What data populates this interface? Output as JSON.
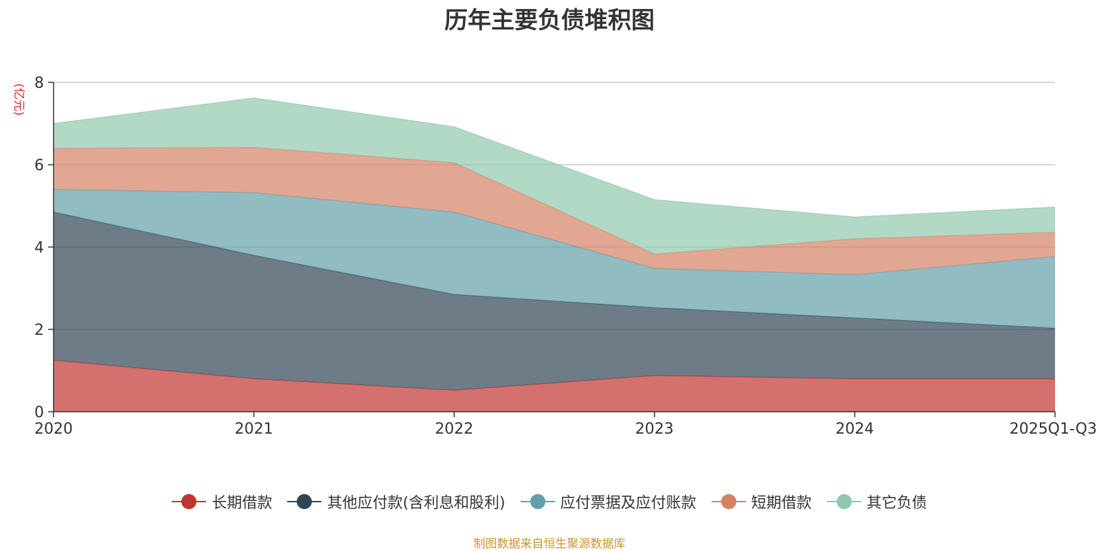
{
  "chart_data": {
    "type": "area",
    "stacked": true,
    "title": "历年主要负债堆积图",
    "unit_label": "(亿元)",
    "categories": [
      "2020",
      "2021",
      "2022",
      "2023",
      "2024",
      "2025Q1-Q3"
    ],
    "ylim": [
      0,
      8
    ],
    "yticks": [
      0,
      2,
      4,
      6,
      8
    ],
    "grid": true,
    "legend_position": "bottom",
    "series": [
      {
        "name": "长期借款",
        "color": "#c23531",
        "values": [
          1.25,
          0.8,
          0.52,
          0.88,
          0.8,
          0.8
        ]
      },
      {
        "name": "其他应付款(含利息和股利)",
        "color": "#2f4554",
        "values": [
          3.6,
          3.0,
          2.33,
          1.65,
          1.48,
          1.23
        ]
      },
      {
        "name": "应付票据及应付账款",
        "color": "#61a0a8",
        "values": [
          0.55,
          1.52,
          2.0,
          0.95,
          1.05,
          1.74
        ]
      },
      {
        "name": "短期借款",
        "color": "#d48265",
        "values": [
          1.0,
          1.1,
          1.2,
          0.35,
          0.87,
          0.59
        ]
      },
      {
        "name": "其它负债",
        "color": "#91c7ae",
        "values": [
          0.6,
          1.2,
          0.87,
          1.32,
          0.53,
          0.61
        ]
      }
    ]
  },
  "footer": {
    "source": "制图数据来自恒生聚源数据库"
  }
}
